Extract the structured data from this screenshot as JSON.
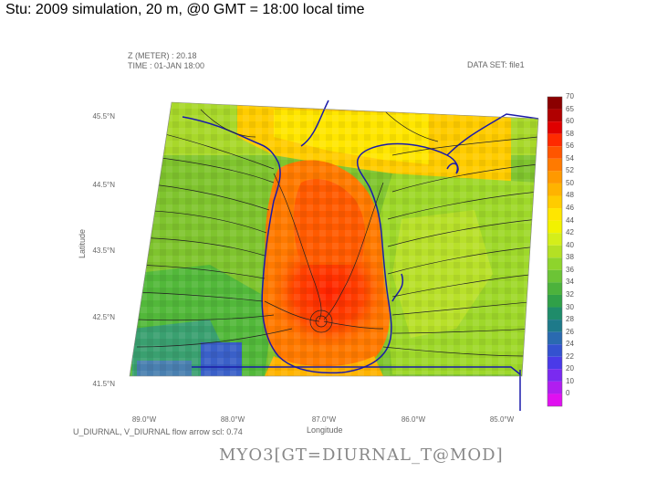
{
  "slide": {
    "title": "Stu: 2009 simulation, 20 m, @0 GMT = 18:00 local time"
  },
  "plot": {
    "header_line1": "Z (METER) : 20.18",
    "header_line2": "TIME : 01-JAN 18:00",
    "dataset_label": "DATA SET: file1",
    "xlabel": "Longitude",
    "ylabel": "Latitude",
    "vector_caption": "U_DIURNAL, V_DIURNAL   flow arrow scl: 0.74",
    "footer": "MYO3[GT=DIURNAL_T@MOD]",
    "lat_ticks": [
      "45.5°N",
      "44.5°N",
      "43.5°N",
      "42.5°N",
      "41.5°N"
    ],
    "lon_ticks": [
      "89.0°W",
      "88.0°W",
      "87.0°W",
      "86.0°W",
      "85.0°W"
    ]
  },
  "colorbar": {
    "levels": [
      "70",
      "65",
      "60",
      "58",
      "56",
      "54",
      "52",
      "50",
      "48",
      "46",
      "44",
      "42",
      "40",
      "38",
      "36",
      "34",
      "32",
      "30",
      "28",
      "26",
      "24",
      "22",
      "20",
      "10",
      "0"
    ],
    "colors": [
      "#8b0000",
      "#b00000",
      "#e00000",
      "#ff2a00",
      "#ff5500",
      "#ff7a00",
      "#ff9900",
      "#ffb300",
      "#ffcc00",
      "#ffe600",
      "#f2f200",
      "#d4ee1a",
      "#b4e024",
      "#8ed42c",
      "#6cc436",
      "#4cb23c",
      "#30a048",
      "#1f8c6a",
      "#1e7a8a",
      "#2a6ab0",
      "#3452d0",
      "#4a3ae8",
      "#7a2af0",
      "#b01ef0",
      "#e010f0"
    ]
  },
  "map_colors": {
    "land_green": "#7fc42e",
    "lake_orange": "#ff7a00",
    "lake_red": "#ff3300",
    "shore_yellow": "#ffcc00",
    "border_blue": "#1a1aaa"
  }
}
